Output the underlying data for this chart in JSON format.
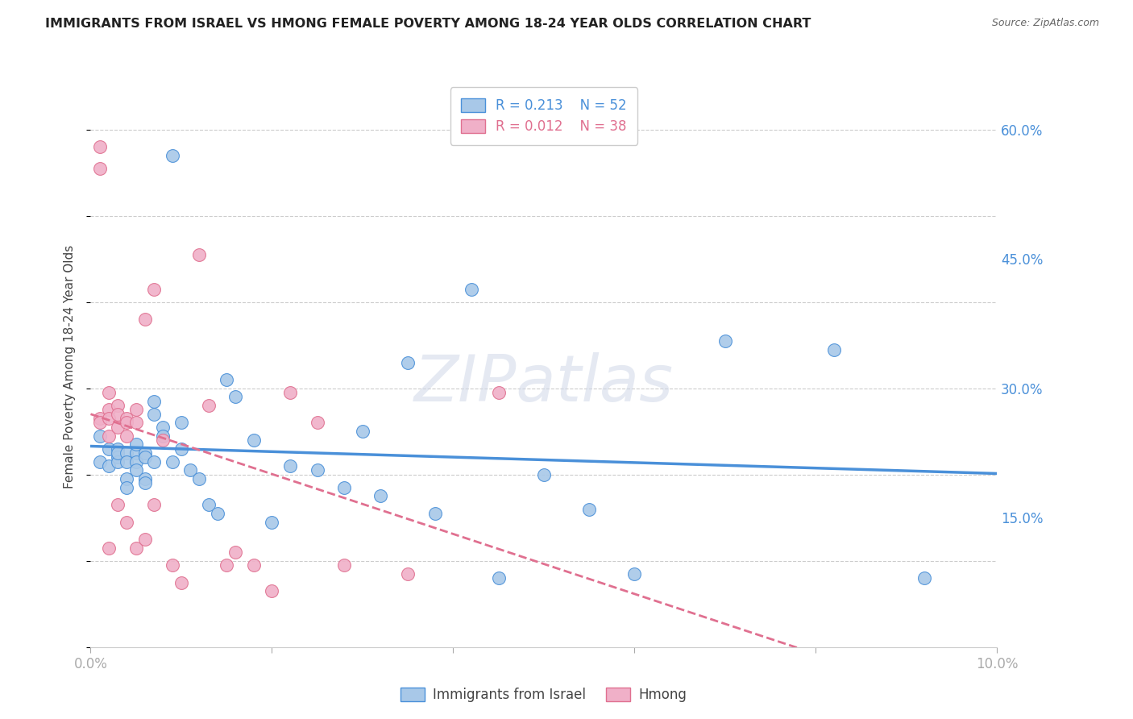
{
  "title": "IMMIGRANTS FROM ISRAEL VS HMONG FEMALE POVERTY AMONG 18-24 YEAR OLDS CORRELATION CHART",
  "source": "Source: ZipAtlas.com",
  "ylabel": "Female Poverty Among 18-24 Year Olds",
  "right_yticks": [
    "60.0%",
    "45.0%",
    "30.0%",
    "15.0%"
  ],
  "right_ytick_vals": [
    0.6,
    0.45,
    0.3,
    0.15
  ],
  "xmin": 0.0,
  "xmax": 0.1,
  "ymin": 0.0,
  "ymax": 0.65,
  "legend_R1": "R = 0.213",
  "legend_N1": "N = 52",
  "legend_R2": "R = 0.012",
  "legend_N2": "N = 38",
  "color_israel": "#a8c8e8",
  "color_hmong": "#f0b0c8",
  "color_israel_line": "#4a90d9",
  "color_hmong_line": "#e07090",
  "background": "#ffffff",
  "israel_x": [
    0.001,
    0.001,
    0.002,
    0.002,
    0.003,
    0.003,
    0.003,
    0.003,
    0.004,
    0.004,
    0.004,
    0.004,
    0.005,
    0.005,
    0.005,
    0.005,
    0.006,
    0.006,
    0.006,
    0.006,
    0.007,
    0.007,
    0.007,
    0.008,
    0.008,
    0.009,
    0.009,
    0.01,
    0.01,
    0.011,
    0.012,
    0.013,
    0.014,
    0.015,
    0.016,
    0.018,
    0.02,
    0.022,
    0.025,
    0.028,
    0.03,
    0.032,
    0.035,
    0.038,
    0.042,
    0.045,
    0.05,
    0.055,
    0.06,
    0.07,
    0.082,
    0.092
  ],
  "israel_y": [
    0.245,
    0.215,
    0.23,
    0.21,
    0.23,
    0.22,
    0.215,
    0.225,
    0.225,
    0.215,
    0.195,
    0.185,
    0.225,
    0.215,
    0.205,
    0.235,
    0.225,
    0.22,
    0.195,
    0.19,
    0.285,
    0.27,
    0.215,
    0.255,
    0.245,
    0.57,
    0.215,
    0.26,
    0.23,
    0.205,
    0.195,
    0.165,
    0.155,
    0.31,
    0.29,
    0.24,
    0.145,
    0.21,
    0.205,
    0.185,
    0.25,
    0.175,
    0.33,
    0.155,
    0.415,
    0.08,
    0.2,
    0.16,
    0.085,
    0.355,
    0.345,
    0.08
  ],
  "hmong_x": [
    0.001,
    0.001,
    0.001,
    0.001,
    0.002,
    0.002,
    0.002,
    0.002,
    0.002,
    0.003,
    0.003,
    0.003,
    0.003,
    0.004,
    0.004,
    0.004,
    0.004,
    0.005,
    0.005,
    0.005,
    0.006,
    0.006,
    0.007,
    0.007,
    0.008,
    0.009,
    0.01,
    0.012,
    0.013,
    0.015,
    0.016,
    0.018,
    0.02,
    0.022,
    0.025,
    0.028,
    0.035,
    0.045
  ],
  "hmong_y": [
    0.58,
    0.555,
    0.265,
    0.26,
    0.295,
    0.275,
    0.265,
    0.245,
    0.115,
    0.28,
    0.27,
    0.255,
    0.165,
    0.265,
    0.26,
    0.245,
    0.145,
    0.275,
    0.26,
    0.115,
    0.38,
    0.125,
    0.415,
    0.165,
    0.24,
    0.095,
    0.075,
    0.455,
    0.28,
    0.095,
    0.11,
    0.095,
    0.065,
    0.295,
    0.26,
    0.095,
    0.085,
    0.295
  ]
}
